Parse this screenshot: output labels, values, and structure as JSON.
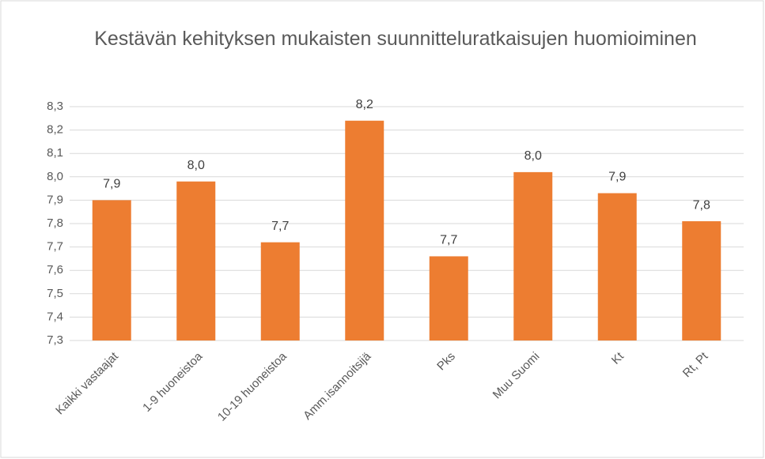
{
  "chart_data": {
    "type": "bar",
    "title": "Kestävän kehityksen mukaisten suunnitteluratkaisujen huomioiminen",
    "categories": [
      "Kaikki vastaajat",
      "1-9 huoneistoa",
      "10-19 huoneistoa",
      "Amm.isannoitsijä",
      "Pks",
      "Muu Suomi",
      "Kt",
      "Rt, Pt"
    ],
    "values": [
      7.9,
      7.98,
      7.72,
      8.24,
      7.66,
      8.02,
      7.93,
      7.81
    ],
    "value_labels": [
      "7,9",
      "8,0",
      "7,7",
      "8,2",
      "7,7",
      "8,0",
      "7,9",
      "7,8"
    ],
    "color": "#ed7d31",
    "ylim": [
      7.3,
      8.3
    ],
    "yticks": [
      {
        "value": 7.3,
        "label": "7,3"
      },
      {
        "value": 7.4,
        "label": "7,4"
      },
      {
        "value": 7.5,
        "label": "7,5"
      },
      {
        "value": 7.6,
        "label": "7,6"
      },
      {
        "value": 7.7,
        "label": "7,7"
      },
      {
        "value": 7.8,
        "label": "7,8"
      },
      {
        "value": 7.9,
        "label": "7,9"
      },
      {
        "value": 8.0,
        "label": "8,0"
      },
      {
        "value": 8.1,
        "label": "8,1"
      },
      {
        "value": 8.2,
        "label": "8,2"
      },
      {
        "value": 8.3,
        "label": "8,3"
      }
    ],
    "grid": true
  }
}
